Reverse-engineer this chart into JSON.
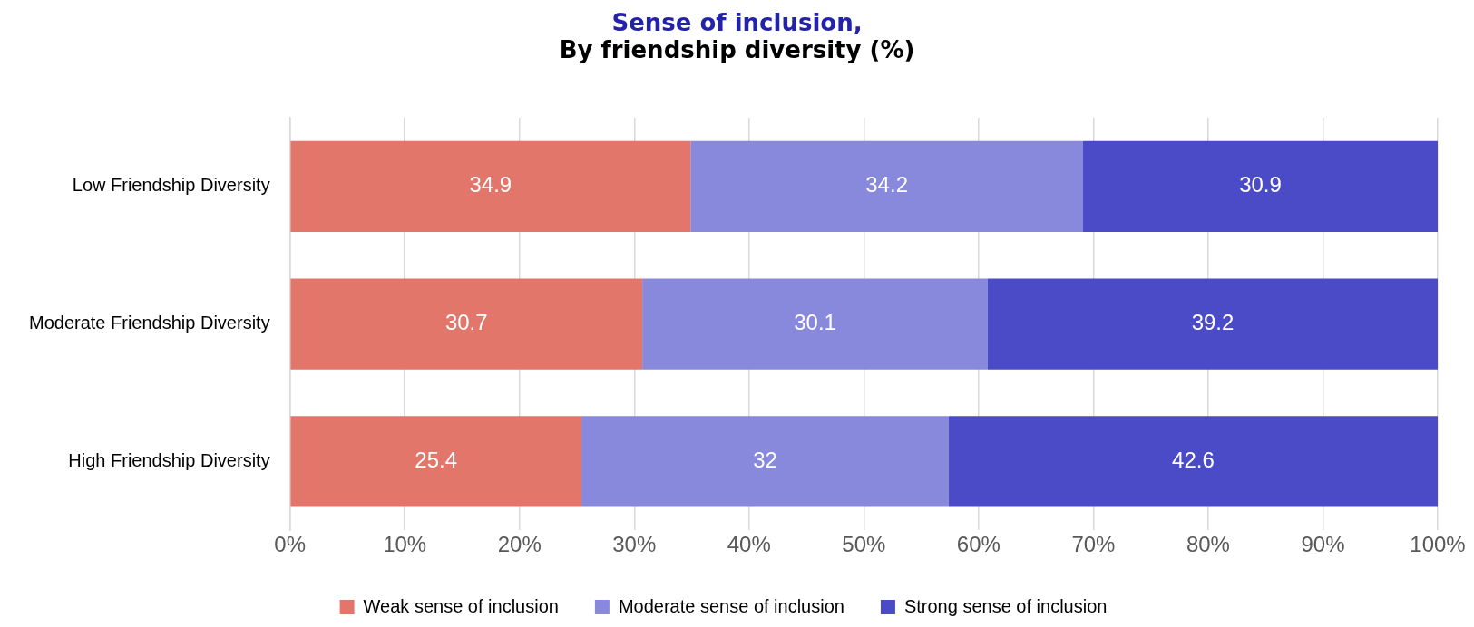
{
  "chart_data": {
    "type": "bar",
    "orientation": "horizontal",
    "stacked": true,
    "title": "Sense of inclusion,",
    "subtitle": "By friendship diversity (%)",
    "categories": [
      "Low Friendship Diversity",
      "Moderate Friendship Diversity",
      "High Friendship Diversity"
    ],
    "series": [
      {
        "name": "Weak sense of inclusion",
        "color": "#e3766a",
        "values": [
          34.9,
          30.7,
          25.4
        ]
      },
      {
        "name": "Moderate sense of inclusion",
        "color": "#8888dd",
        "values": [
          34.2,
          30.1,
          32
        ]
      },
      {
        "name": "Strong sense of inclusion",
        "color": "#4b4bc8",
        "values": [
          30.9,
          39.2,
          42.6
        ]
      }
    ],
    "xlim": [
      0,
      100
    ],
    "xticks": [
      {
        "value": 0,
        "label": "0%"
      },
      {
        "value": 10,
        "label": "10%"
      },
      {
        "value": 20,
        "label": "20%"
      },
      {
        "value": 30,
        "label": "30%"
      },
      {
        "value": 40,
        "label": "40%"
      },
      {
        "value": 50,
        "label": "50%"
      },
      {
        "value": 60,
        "label": "60%"
      },
      {
        "value": 70,
        "label": "70%"
      },
      {
        "value": 80,
        "label": "80%"
      },
      {
        "value": 90,
        "label": "90%"
      },
      {
        "value": 100,
        "label": "100%"
      }
    ],
    "grid": "x",
    "legend": "bottom",
    "data_labels": true
  }
}
